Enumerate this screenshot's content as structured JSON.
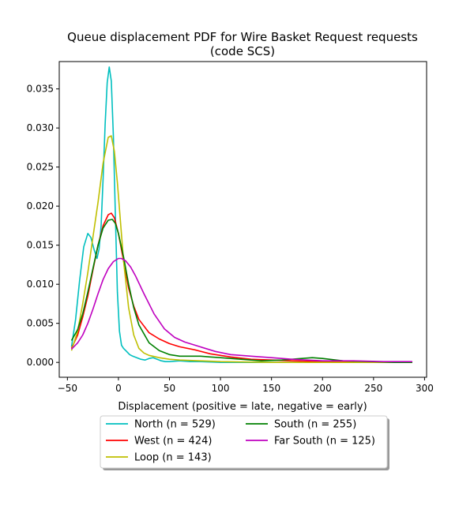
{
  "chart_data": {
    "type": "line",
    "title": "Queue displacement PDF for Wire Basket Request  requests",
    "subtitle": "(code SCS)",
    "xlabel": "Displacement (positive = late, negative = early)",
    "ylabel": "",
    "xlim": [
      -58,
      302
    ],
    "ylim": [
      -0.0019,
      0.0385
    ],
    "xticks": [
      -50,
      0,
      50,
      100,
      150,
      200,
      250,
      300
    ],
    "xtick_labels": [
      "−50",
      "0",
      "50",
      "100",
      "150",
      "200",
      "250",
      "300"
    ],
    "yticks": [
      0.0,
      0.005,
      0.01,
      0.015,
      0.02,
      0.025,
      0.03,
      0.035
    ],
    "ytick_labels": [
      "0.000",
      "0.005",
      "0.010",
      "0.015",
      "0.020",
      "0.025",
      "0.030",
      "0.035"
    ],
    "grid": false,
    "legend_position": "below",
    "series": [
      {
        "name": "North (n = 529)",
        "color": "#00bfbf",
        "x": [
          -46,
          -42,
          -38,
          -34,
          -30,
          -27,
          -24,
          -21,
          -19,
          -17,
          -15,
          -13,
          -11,
          -9,
          -7,
          -5,
          -3,
          -1,
          1,
          3,
          5,
          8,
          11,
          14,
          18,
          22,
          26,
          30,
          34,
          38,
          42,
          46,
          50,
          60,
          70,
          80,
          100,
          150,
          200,
          250,
          288
        ],
        "y": [
          0.002,
          0.0055,
          0.0105,
          0.0148,
          0.0165,
          0.016,
          0.0145,
          0.0133,
          0.0145,
          0.0175,
          0.0235,
          0.0305,
          0.0358,
          0.0378,
          0.036,
          0.029,
          0.019,
          0.009,
          0.004,
          0.0022,
          0.0018,
          0.0014,
          0.001,
          0.0008,
          0.0006,
          0.0004,
          0.0003,
          0.0005,
          0.0006,
          0.0004,
          0.0002,
          0.0001,
          0.0001,
          0.0002,
          0.0001,
          0.0001,
          0.0,
          0.0,
          0.0,
          0.0,
          0.0
        ]
      },
      {
        "name": "West (n = 424)",
        "color": "#ff0000",
        "x": [
          -46,
          -40,
          -35,
          -30,
          -25,
          -20,
          -15,
          -10,
          -7,
          -4,
          0,
          5,
          10,
          15,
          20,
          30,
          40,
          50,
          60,
          75,
          90,
          110,
          130,
          150,
          170,
          200,
          230,
          260,
          288
        ],
        "y": [
          0.0018,
          0.0035,
          0.0058,
          0.0085,
          0.0118,
          0.015,
          0.0175,
          0.0189,
          0.0191,
          0.0185,
          0.0165,
          0.013,
          0.0095,
          0.0072,
          0.0055,
          0.0038,
          0.003,
          0.0024,
          0.002,
          0.0016,
          0.0011,
          0.0007,
          0.0004,
          0.0003,
          0.0002,
          0.0001,
          0.0001,
          0.0,
          0.0
        ]
      },
      {
        "name": "Loop (n = 143)",
        "color": "#bfbf00",
        "x": [
          -46,
          -40,
          -35,
          -30,
          -25,
          -20,
          -15,
          -10,
          -7,
          -4,
          -1,
          2,
          5,
          10,
          15,
          20,
          25,
          30,
          40,
          50,
          60,
          80,
          100,
          150,
          200,
          250,
          288
        ],
        "y": [
          0.0015,
          0.004,
          0.0075,
          0.0115,
          0.016,
          0.0205,
          0.0255,
          0.0288,
          0.029,
          0.027,
          0.023,
          0.018,
          0.013,
          0.007,
          0.0035,
          0.0018,
          0.0012,
          0.0009,
          0.0006,
          0.0004,
          0.0003,
          0.0002,
          0.0001,
          0.0,
          0.0,
          0.0,
          0.0
        ]
      },
      {
        "name": "South (n = 255)",
        "color": "#008000",
        "x": [
          -46,
          -40,
          -35,
          -30,
          -25,
          -20,
          -15,
          -10,
          -6,
          -3,
          0,
          5,
          10,
          15,
          20,
          30,
          40,
          50,
          60,
          70,
          80,
          90,
          100,
          120,
          140,
          160,
          180,
          190,
          200,
          220,
          250,
          270,
          288
        ],
        "y": [
          0.0028,
          0.0042,
          0.0062,
          0.009,
          0.012,
          0.015,
          0.0172,
          0.0182,
          0.0183,
          0.0178,
          0.0165,
          0.0135,
          0.01,
          0.007,
          0.0048,
          0.0025,
          0.0015,
          0.001,
          0.0008,
          0.0008,
          0.0008,
          0.0007,
          0.0006,
          0.0004,
          0.0002,
          0.0003,
          0.0005,
          0.0006,
          0.0005,
          0.0002,
          0.0001,
          0.0,
          0.0
        ]
      },
      {
        "name": "Far South (n = 125)",
        "color": "#bf00bf",
        "x": [
          -46,
          -40,
          -35,
          -30,
          -25,
          -20,
          -15,
          -10,
          -5,
          0,
          3,
          7,
          12,
          17,
          25,
          35,
          45,
          55,
          65,
          80,
          95,
          110,
          130,
          150,
          170,
          200,
          230,
          260,
          288
        ],
        "y": [
          0.0017,
          0.0025,
          0.0035,
          0.005,
          0.0068,
          0.0088,
          0.0106,
          0.012,
          0.0129,
          0.0133,
          0.0133,
          0.013,
          0.0122,
          0.011,
          0.0088,
          0.0062,
          0.0043,
          0.0032,
          0.0026,
          0.002,
          0.0014,
          0.001,
          0.0008,
          0.0006,
          0.0004,
          0.0002,
          0.0002,
          0.0001,
          0.0001
        ]
      }
    ]
  }
}
